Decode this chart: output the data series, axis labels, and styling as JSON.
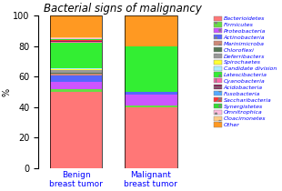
{
  "title": "Bacterial signs of malignancy",
  "categories": [
    "Benign\nbreast tumor",
    "Malignant\nbreast tumor"
  ],
  "ylabel": "%",
  "ylim": [
    0,
    100
  ],
  "yticks": [
    0,
    20,
    40,
    60,
    80,
    100
  ],
  "legend_labels": [
    "Bacterioidetes",
    "Firmicutes",
    "Proteobacteria",
    "Actinobacteria",
    "Marinimicroba",
    "Chloroflexi",
    "Deferribacters",
    "Spirochaetes",
    "Candidate division",
    "Latescibacteria",
    "Cyanobacteria",
    "Acidobacteria",
    "Fusobacteria",
    "Saccharibacteria",
    "Synergistetes",
    "Omnitrophica",
    "Cloacimonetes",
    "Other"
  ],
  "colors": [
    "#FF7777",
    "#66DD44",
    "#CC55FF",
    "#5566FF",
    "#CC8877",
    "#557755",
    "#999999",
    "#FFFF33",
    "#AAEEFF",
    "#33EE33",
    "#FF66AA",
    "#882255",
    "#55AAFF",
    "#FF3333",
    "#33DD33",
    "#FFBBDD",
    "#FFCC88",
    "#FF9922"
  ],
  "benign": [
    50,
    3,
    5,
    6,
    1,
    1,
    1,
    0.5,
    0.5,
    17,
    0.5,
    0.5,
    0.5,
    0.5,
    0.5,
    0.5,
    0.5,
    12
  ],
  "malignant": [
    40,
    1,
    7,
    5,
    0,
    0,
    0,
    0,
    0,
    30,
    0,
    0,
    0,
    0,
    0,
    0,
    0,
    17
  ]
}
